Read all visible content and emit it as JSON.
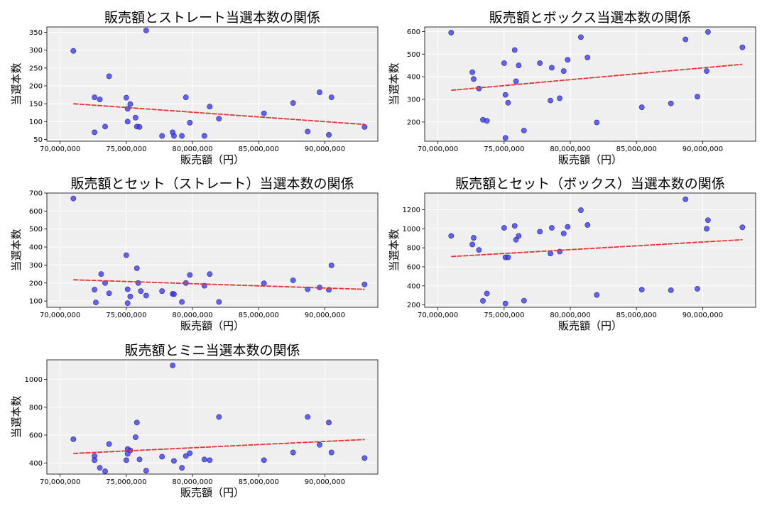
{
  "colors": {
    "point": "#3a3ae8",
    "trend": "#e83232",
    "plot_bg": "#efefef",
    "grid": "#ffffff"
  },
  "chart_data": [
    {
      "type": "scatter",
      "title": "販売額とストレート当選本数の関係",
      "xlabel": "販売額（円）",
      "ylabel": "当選本数",
      "xlim": [
        69000000,
        94000000
      ],
      "ylim": [
        45,
        365
      ],
      "xticks": [
        70000000,
        75000000,
        80000000,
        85000000,
        90000000
      ],
      "xtick_labels": [
        "70,000,000",
        "75,000,000",
        "80,000,000",
        "85,000,000",
        "90,000,000"
      ],
      "yticks": [
        50,
        100,
        150,
        200,
        250,
        300,
        350
      ],
      "grid": true,
      "trendline": {
        "x": [
          71000000,
          93000000
        ],
        "y": [
          150,
          92
        ]
      },
      "points": [
        {
          "x": 71000000,
          "y": 298
        },
        {
          "x": 72600000,
          "y": 168
        },
        {
          "x": 72600000,
          "y": 70
        },
        {
          "x": 73000000,
          "y": 162
        },
        {
          "x": 73400000,
          "y": 86
        },
        {
          "x": 73700000,
          "y": 227
        },
        {
          "x": 75000000,
          "y": 167
        },
        {
          "x": 75100000,
          "y": 136
        },
        {
          "x": 75100000,
          "y": 100
        },
        {
          "x": 75300000,
          "y": 149
        },
        {
          "x": 75700000,
          "y": 111
        },
        {
          "x": 75800000,
          "y": 86
        },
        {
          "x": 76000000,
          "y": 85
        },
        {
          "x": 76500000,
          "y": 355
        },
        {
          "x": 77700000,
          "y": 60
        },
        {
          "x": 78500000,
          "y": 70
        },
        {
          "x": 78600000,
          "y": 60
        },
        {
          "x": 79200000,
          "y": 60
        },
        {
          "x": 79500000,
          "y": 168
        },
        {
          "x": 79800000,
          "y": 97
        },
        {
          "x": 80900000,
          "y": 60
        },
        {
          "x": 81300000,
          "y": 142
        },
        {
          "x": 82000000,
          "y": 108
        },
        {
          "x": 85400000,
          "y": 123
        },
        {
          "x": 87600000,
          "y": 152
        },
        {
          "x": 88700000,
          "y": 72
        },
        {
          "x": 89600000,
          "y": 182
        },
        {
          "x": 90300000,
          "y": 63
        },
        {
          "x": 90500000,
          "y": 168
        },
        {
          "x": 93000000,
          "y": 85
        }
      ]
    },
    {
      "type": "scatter",
      "title": "販売額とボックス当選本数の関係",
      "xlabel": "販売額（円）",
      "ylabel": "当選本数",
      "xlim": [
        69000000,
        94000000
      ],
      "ylim": [
        115,
        620
      ],
      "xticks": [
        70000000,
        75000000,
        80000000,
        85000000,
        90000000
      ],
      "xtick_labels": [
        "70,000,000",
        "75,000,000",
        "80,000,000",
        "85,000,000",
        "90,000,000"
      ],
      "yticks": [
        200,
        300,
        400,
        500,
        600
      ],
      "grid": true,
      "trendline": {
        "x": [
          71000000,
          93000000
        ],
        "y": [
          340,
          455
        ]
      },
      "points": [
        {
          "x": 71000000,
          "y": 595
        },
        {
          "x": 72600000,
          "y": 420
        },
        {
          "x": 72700000,
          "y": 390
        },
        {
          "x": 73100000,
          "y": 348
        },
        {
          "x": 73400000,
          "y": 210
        },
        {
          "x": 73700000,
          "y": 205
        },
        {
          "x": 75000000,
          "y": 460
        },
        {
          "x": 75100000,
          "y": 320
        },
        {
          "x": 75100000,
          "y": 130
        },
        {
          "x": 75300000,
          "y": 285
        },
        {
          "x": 75800000,
          "y": 518
        },
        {
          "x": 75900000,
          "y": 380
        },
        {
          "x": 76100000,
          "y": 450
        },
        {
          "x": 76500000,
          "y": 162
        },
        {
          "x": 77700000,
          "y": 460
        },
        {
          "x": 78500000,
          "y": 295
        },
        {
          "x": 78600000,
          "y": 440
        },
        {
          "x": 79200000,
          "y": 305
        },
        {
          "x": 79500000,
          "y": 425
        },
        {
          "x": 79800000,
          "y": 475
        },
        {
          "x": 80800000,
          "y": 575
        },
        {
          "x": 81300000,
          "y": 485
        },
        {
          "x": 82000000,
          "y": 198
        },
        {
          "x": 85400000,
          "y": 265
        },
        {
          "x": 87600000,
          "y": 282
        },
        {
          "x": 88700000,
          "y": 565
        },
        {
          "x": 89600000,
          "y": 312
        },
        {
          "x": 90300000,
          "y": 425
        },
        {
          "x": 90400000,
          "y": 598
        },
        {
          "x": 93000000,
          "y": 530
        }
      ]
    },
    {
      "type": "scatter",
      "title": "販売額とセット（ストレート）当選本数の関係",
      "xlabel": "販売額（円）",
      "ylabel": "当選本数",
      "xlim": [
        69000000,
        94000000
      ],
      "ylim": [
        65,
        700
      ],
      "xticks": [
        70000000,
        75000000,
        80000000,
        85000000,
        90000000
      ],
      "xtick_labels": [
        "70,000,000",
        "75,000,000",
        "80,000,000",
        "85,000,000",
        "90,000,000"
      ],
      "yticks": [
        100,
        200,
        300,
        400,
        500,
        600,
        700
      ],
      "grid": true,
      "trendline": {
        "x": [
          71000000,
          93000000
        ],
        "y": [
          218,
          165
        ]
      },
      "points": [
        {
          "x": 71000000,
          "y": 670
        },
        {
          "x": 72600000,
          "y": 163
        },
        {
          "x": 72700000,
          "y": 92
        },
        {
          "x": 73100000,
          "y": 250
        },
        {
          "x": 73400000,
          "y": 200
        },
        {
          "x": 73700000,
          "y": 143
        },
        {
          "x": 75000000,
          "y": 355
        },
        {
          "x": 75100000,
          "y": 165
        },
        {
          "x": 75100000,
          "y": 88
        },
        {
          "x": 75300000,
          "y": 125
        },
        {
          "x": 75800000,
          "y": 282
        },
        {
          "x": 75900000,
          "y": 200
        },
        {
          "x": 76100000,
          "y": 155
        },
        {
          "x": 76500000,
          "y": 130
        },
        {
          "x": 77700000,
          "y": 155
        },
        {
          "x": 78500000,
          "y": 140
        },
        {
          "x": 78600000,
          "y": 138
        },
        {
          "x": 79200000,
          "y": 95
        },
        {
          "x": 79500000,
          "y": 200
        },
        {
          "x": 79800000,
          "y": 245
        },
        {
          "x": 80900000,
          "y": 185
        },
        {
          "x": 81300000,
          "y": 250
        },
        {
          "x": 82000000,
          "y": 95
        },
        {
          "x": 85400000,
          "y": 198
        },
        {
          "x": 87600000,
          "y": 215
        },
        {
          "x": 88700000,
          "y": 165
        },
        {
          "x": 89600000,
          "y": 175
        },
        {
          "x": 90300000,
          "y": 162
        },
        {
          "x": 90500000,
          "y": 298
        },
        {
          "x": 93000000,
          "y": 192
        }
      ]
    },
    {
      "type": "scatter",
      "title": "販売額とセット（ボックス）当選本数の関係",
      "xlabel": "販売額（円）",
      "ylabel": "当選本数",
      "xlim": [
        69000000,
        94000000
      ],
      "ylim": [
        175,
        1375
      ],
      "xticks": [
        70000000,
        75000000,
        80000000,
        85000000,
        90000000
      ],
      "xtick_labels": [
        "70,000,000",
        "75,000,000",
        "80,000,000",
        "85,000,000",
        "90,000,000"
      ],
      "yticks": [
        200,
        400,
        600,
        800,
        1000,
        1200
      ],
      "grid": true,
      "trendline": {
        "x": [
          71000000,
          93000000
        ],
        "y": [
          708,
          885
        ]
      },
      "points": [
        {
          "x": 71000000,
          "y": 925
        },
        {
          "x": 72600000,
          "y": 835
        },
        {
          "x": 72700000,
          "y": 905
        },
        {
          "x": 73100000,
          "y": 778
        },
        {
          "x": 73400000,
          "y": 243
        },
        {
          "x": 73700000,
          "y": 320
        },
        {
          "x": 75000000,
          "y": 1010
        },
        {
          "x": 75100000,
          "y": 700
        },
        {
          "x": 75100000,
          "y": 215
        },
        {
          "x": 75300000,
          "y": 700
        },
        {
          "x": 75800000,
          "y": 1030
        },
        {
          "x": 75900000,
          "y": 885
        },
        {
          "x": 76100000,
          "y": 925
        },
        {
          "x": 76500000,
          "y": 245
        },
        {
          "x": 77700000,
          "y": 970
        },
        {
          "x": 78500000,
          "y": 740
        },
        {
          "x": 78600000,
          "y": 1010
        },
        {
          "x": 79200000,
          "y": 760
        },
        {
          "x": 79500000,
          "y": 950
        },
        {
          "x": 79800000,
          "y": 1020
        },
        {
          "x": 80800000,
          "y": 1195
        },
        {
          "x": 81300000,
          "y": 1040
        },
        {
          "x": 82000000,
          "y": 305
        },
        {
          "x": 85400000,
          "y": 360
        },
        {
          "x": 87600000,
          "y": 355
        },
        {
          "x": 88700000,
          "y": 1310
        },
        {
          "x": 89600000,
          "y": 370
        },
        {
          "x": 90300000,
          "y": 1000
        },
        {
          "x": 90400000,
          "y": 1090
        },
        {
          "x": 93000000,
          "y": 1015
        }
      ]
    },
    {
      "type": "scatter",
      "title": "販売額とミニ当選本数の関係",
      "xlabel": "販売額（円）",
      "ylabel": "当選本数",
      "xlim": [
        69000000,
        94000000
      ],
      "ylim": [
        320,
        1140
      ],
      "xticks": [
        70000000,
        75000000,
        80000000,
        85000000,
        90000000
      ],
      "xtick_labels": [
        "70,000,000",
        "75,000,000",
        "80,000,000",
        "85,000,000",
        "90,000,000"
      ],
      "yticks": [
        400,
        600,
        800,
        1000
      ],
      "grid": true,
      "trendline": {
        "x": [
          71000000,
          93000000
        ],
        "y": [
          468,
          568
        ]
      },
      "points": [
        {
          "x": 71000000,
          "y": 570
        },
        {
          "x": 72600000,
          "y": 450
        },
        {
          "x": 72600000,
          "y": 420
        },
        {
          "x": 73000000,
          "y": 365
        },
        {
          "x": 73400000,
          "y": 340
        },
        {
          "x": 73700000,
          "y": 535
        },
        {
          "x": 75000000,
          "y": 420
        },
        {
          "x": 75100000,
          "y": 500
        },
        {
          "x": 75100000,
          "y": 465
        },
        {
          "x": 75300000,
          "y": 490
        },
        {
          "x": 75700000,
          "y": 585
        },
        {
          "x": 75800000,
          "y": 690
        },
        {
          "x": 76000000,
          "y": 425
        },
        {
          "x": 76500000,
          "y": 345
        },
        {
          "x": 77700000,
          "y": 445
        },
        {
          "x": 78500000,
          "y": 1100
        },
        {
          "x": 78600000,
          "y": 415
        },
        {
          "x": 79200000,
          "y": 365
        },
        {
          "x": 79500000,
          "y": 450
        },
        {
          "x": 79800000,
          "y": 470
        },
        {
          "x": 80900000,
          "y": 425
        },
        {
          "x": 81300000,
          "y": 420
        },
        {
          "x": 82000000,
          "y": 730
        },
        {
          "x": 85400000,
          "y": 420
        },
        {
          "x": 87600000,
          "y": 475
        },
        {
          "x": 88700000,
          "y": 730
        },
        {
          "x": 89600000,
          "y": 530
        },
        {
          "x": 90300000,
          "y": 690
        },
        {
          "x": 90500000,
          "y": 475
        },
        {
          "x": 93000000,
          "y": 435
        }
      ]
    }
  ]
}
